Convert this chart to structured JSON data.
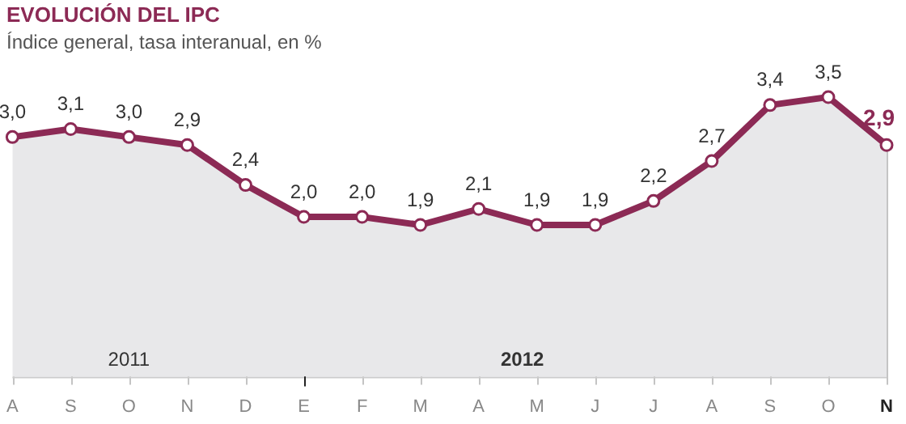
{
  "chart_data": {
    "type": "area",
    "title": "EVOLUCIÓN DEL IPC",
    "subtitle": "Índice general, tasa interanual, en %",
    "categories": [
      "A",
      "S",
      "O",
      "N",
      "D",
      "E",
      "F",
      "M",
      "A",
      "M",
      "J",
      "J",
      "A",
      "S",
      "O",
      "N"
    ],
    "series": [
      {
        "color": "#8c2a55",
        "values": [
          3.0,
          3.1,
          3.0,
          2.9,
          2.4,
          2.0,
          2.0,
          1.9,
          2.1,
          1.9,
          1.9,
          2.2,
          2.7,
          3.4,
          3.5,
          2.9
        ],
        "value_labels": [
          "3,0",
          "3,1",
          "3,0",
          "2,9",
          "2,4",
          "2,0",
          "2,0",
          "1,9",
          "2,1",
          "1,9",
          "1,9",
          "2,2",
          "2,7",
          "3,4",
          "3,5",
          "2,9"
        ]
      }
    ],
    "ref_lines": [
      {
        "axis": "x",
        "value": "E",
        "color": "#222222"
      }
    ],
    "annotations": [
      "2011",
      "2012"
    ],
    "grid": "x",
    "marker": "circle",
    "legend": false,
    "tick_labels": "x"
  }
}
